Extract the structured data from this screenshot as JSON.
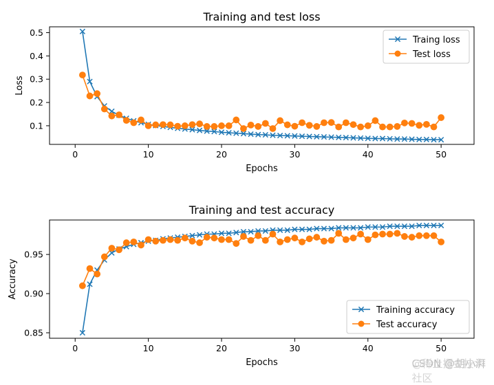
{
  "chart_data": [
    {
      "type": "line",
      "title": "Training and test loss",
      "xlabel": "Epochs",
      "ylabel": "Loss",
      "xlim": [
        -3.5,
        54.5
      ],
      "ylim": [
        0.02,
        0.525
      ],
      "xticks": [
        0,
        10,
        20,
        30,
        40,
        50
      ],
      "yticks": [
        0.1,
        0.2,
        0.3,
        0.4,
        0.5
      ],
      "ytick_labels": [
        "0.1",
        "0.2",
        "0.3",
        "0.4",
        "0.5"
      ],
      "legend_position": "top-right",
      "grid": false,
      "x": [
        1,
        2,
        3,
        4,
        5,
        6,
        7,
        8,
        9,
        10,
        11,
        12,
        13,
        14,
        15,
        16,
        17,
        18,
        19,
        20,
        21,
        22,
        23,
        24,
        25,
        26,
        27,
        28,
        29,
        30,
        31,
        32,
        33,
        34,
        35,
        36,
        37,
        38,
        39,
        40,
        41,
        42,
        43,
        44,
        45,
        46,
        47,
        48,
        49,
        50
      ],
      "series": [
        {
          "name": "Traing loss",
          "marker": "x",
          "color": "#1f77b4",
          "values": [
            0.505,
            0.29,
            0.225,
            0.185,
            0.162,
            0.145,
            0.132,
            0.121,
            0.113,
            0.106,
            0.101,
            0.097,
            0.093,
            0.089,
            0.086,
            0.083,
            0.08,
            0.077,
            0.075,
            0.072,
            0.07,
            0.068,
            0.066,
            0.064,
            0.062,
            0.061,
            0.059,
            0.058,
            0.057,
            0.056,
            0.055,
            0.054,
            0.053,
            0.052,
            0.051,
            0.05,
            0.049,
            0.048,
            0.047,
            0.046,
            0.045,
            0.045,
            0.044,
            0.043,
            0.043,
            0.042,
            0.041,
            0.041,
            0.04,
            0.04
          ]
        },
        {
          "name": "Test loss",
          "marker": "o",
          "color": "#ff7f0e",
          "values": [
            0.318,
            0.228,
            0.238,
            0.172,
            0.142,
            0.147,
            0.123,
            0.113,
            0.125,
            0.1,
            0.104,
            0.105,
            0.104,
            0.098,
            0.1,
            0.105,
            0.108,
            0.097,
            0.097,
            0.1,
            0.1,
            0.125,
            0.088,
            0.103,
            0.097,
            0.11,
            0.088,
            0.122,
            0.104,
            0.098,
            0.113,
            0.102,
            0.097,
            0.113,
            0.114,
            0.095,
            0.113,
            0.105,
            0.095,
            0.1,
            0.122,
            0.095,
            0.095,
            0.097,
            0.112,
            0.11,
            0.102,
            0.106,
            0.095,
            0.135
          ]
        }
      ]
    },
    {
      "type": "line",
      "title": "Training and test accuracy",
      "xlabel": "Epochs",
      "ylabel": "Accuracy",
      "xlim": [
        -3.5,
        54.5
      ],
      "ylim": [
        0.843,
        0.994
      ],
      "xticks": [
        0,
        10,
        20,
        30,
        40,
        50
      ],
      "yticks": [
        0.85,
        0.9,
        0.95
      ],
      "ytick_labels": [
        "0.85",
        "0.90",
        "0.95"
      ],
      "legend_position": "bottom-right",
      "grid": false,
      "x": [
        1,
        2,
        3,
        4,
        5,
        6,
        7,
        8,
        9,
        10,
        11,
        12,
        13,
        14,
        15,
        16,
        17,
        18,
        19,
        20,
        21,
        22,
        23,
        24,
        25,
        26,
        27,
        28,
        29,
        30,
        31,
        32,
        33,
        34,
        35,
        36,
        37,
        38,
        39,
        40,
        41,
        42,
        43,
        44,
        45,
        46,
        47,
        48,
        49,
        50
      ],
      "series": [
        {
          "name": "Training accuracy",
          "marker": "x",
          "color": "#1f77b4",
          "values": [
            0.85,
            0.912,
            0.93,
            0.943,
            0.952,
            0.957,
            0.96,
            0.963,
            0.965,
            0.967,
            0.968,
            0.97,
            0.971,
            0.972,
            0.973,
            0.974,
            0.975,
            0.976,
            0.976,
            0.977,
            0.977,
            0.978,
            0.979,
            0.979,
            0.98,
            0.98,
            0.981,
            0.981,
            0.981,
            0.982,
            0.982,
            0.982,
            0.983,
            0.983,
            0.983,
            0.984,
            0.984,
            0.984,
            0.984,
            0.985,
            0.985,
            0.985,
            0.986,
            0.986,
            0.986,
            0.986,
            0.987,
            0.987,
            0.987,
            0.987
          ]
        },
        {
          "name": "Test accuracy",
          "marker": "o",
          "color": "#ff7f0e",
          "values": [
            0.91,
            0.932,
            0.925,
            0.947,
            0.958,
            0.956,
            0.965,
            0.966,
            0.962,
            0.969,
            0.967,
            0.968,
            0.969,
            0.968,
            0.971,
            0.967,
            0.965,
            0.972,
            0.971,
            0.969,
            0.969,
            0.964,
            0.973,
            0.968,
            0.974,
            0.968,
            0.976,
            0.966,
            0.969,
            0.971,
            0.966,
            0.97,
            0.972,
            0.967,
            0.968,
            0.977,
            0.969,
            0.971,
            0.976,
            0.969,
            0.975,
            0.976,
            0.976,
            0.977,
            0.973,
            0.972,
            0.974,
            0.974,
            0.974,
            0.966
          ]
        }
      ]
    }
  ],
  "watermark": {
    "line1": "@稀土掘金技术社区",
    "line2": "CSDN @胡小湃"
  }
}
